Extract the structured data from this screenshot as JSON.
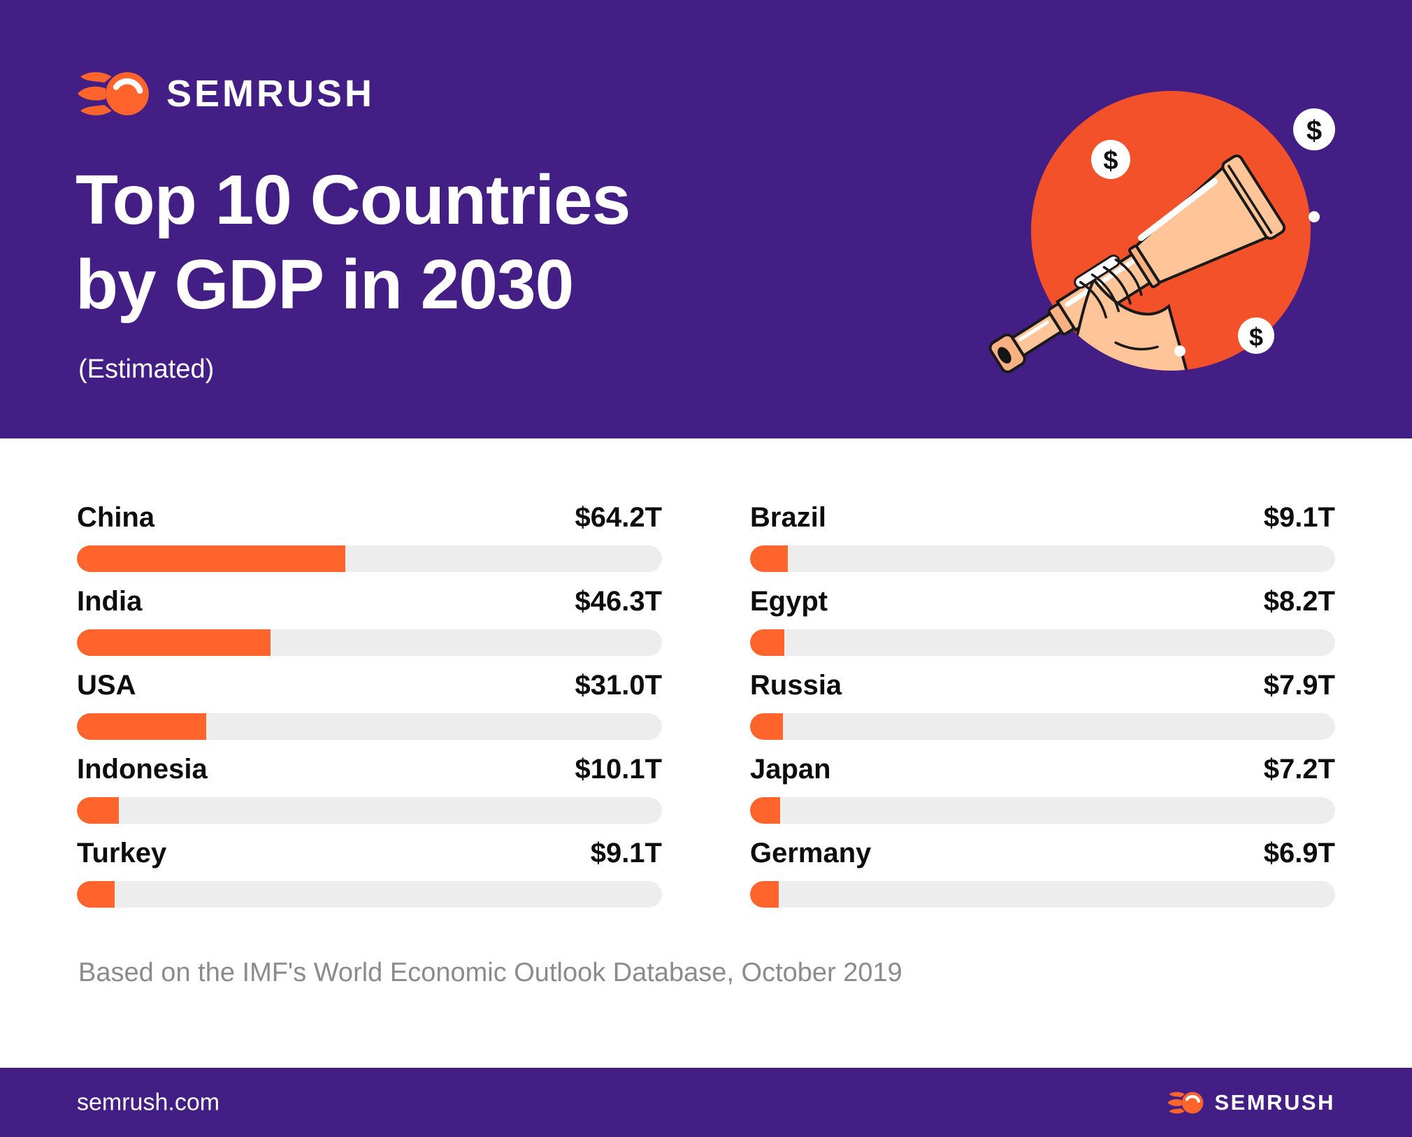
{
  "colors": {
    "brand_purple": "#431E85",
    "brand_orange": "#FF642D",
    "illustration_orange": "#F2512A",
    "bar_track_gray": "#EDEDED",
    "label_ink": "#0D0D0D",
    "note_gray": "#8B8B8B",
    "skin_peach": "#FFC497"
  },
  "header": {
    "logo_text": "SEMRUSH",
    "title_line1": "Top 10 Countries",
    "title_line2": "by GDP in 2030",
    "subtitle": "(Estimated)"
  },
  "illustration": {
    "description": "hand holding telescope in orange circle",
    "coin_symbol": "$",
    "coin_count": 3
  },
  "chart_data": {
    "type": "bar",
    "title": "Top 10 Countries by GDP in 2030 (Estimated)",
    "unit": "trillions USD",
    "value_prefix": "$",
    "value_suffix": "T",
    "scale_max": 140,
    "bar_color": "#FF642D",
    "track_color": "#EDEDED",
    "legend": "none",
    "grid": false,
    "columns": [
      {
        "side": "left",
        "rows": [
          {
            "country": "China",
            "value": 64.2,
            "display": "$64.2T"
          },
          {
            "country": "India",
            "value": 46.3,
            "display": "$46.3T"
          },
          {
            "country": "USA",
            "value": 31.0,
            "display": "$31.0T"
          },
          {
            "country": "Indonesia",
            "value": 10.1,
            "display": "$10.1T"
          },
          {
            "country": "Turkey",
            "value": 9.1,
            "display": "$9.1T"
          }
        ]
      },
      {
        "side": "right",
        "rows": [
          {
            "country": "Brazil",
            "value": 9.1,
            "display": "$9.1T"
          },
          {
            "country": "Egypt",
            "value": 8.2,
            "display": "$8.2T"
          },
          {
            "country": "Russia",
            "value": 7.9,
            "display": "$7.9T"
          },
          {
            "country": "Japan",
            "value": 7.2,
            "display": "$7.2T"
          },
          {
            "country": "Germany",
            "value": 6.9,
            "display": "$6.9T"
          }
        ]
      }
    ]
  },
  "note": "Based on the IMF's World Economic Outlook Database, October 2019",
  "footer": {
    "url": "semrush.com",
    "logo_text": "SEMRUSH"
  }
}
